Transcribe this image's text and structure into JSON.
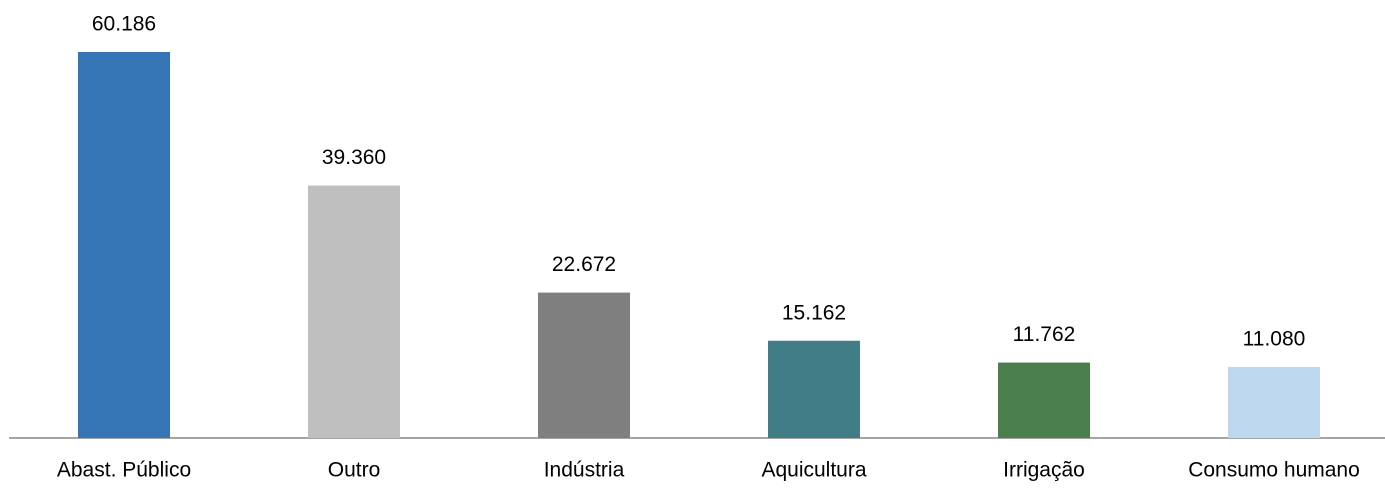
{
  "chart_data": {
    "type": "bar",
    "categories": [
      "Abast. Público",
      "Outro",
      "Indústria",
      "Aquicultura",
      "Irrigação",
      "Consumo humano"
    ],
    "values": [
      60186,
      39360,
      22672,
      15162,
      11762,
      11080
    ],
    "value_labels": [
      "60.186",
      "39.360",
      "22.672",
      "15.162",
      "11.762",
      "11.080"
    ],
    "colors": [
      "#3575b5",
      "#bfbfbf",
      "#7f7f7f",
      "#417d86",
      "#4a7f4d",
      "#bdd7ee"
    ]
  }
}
